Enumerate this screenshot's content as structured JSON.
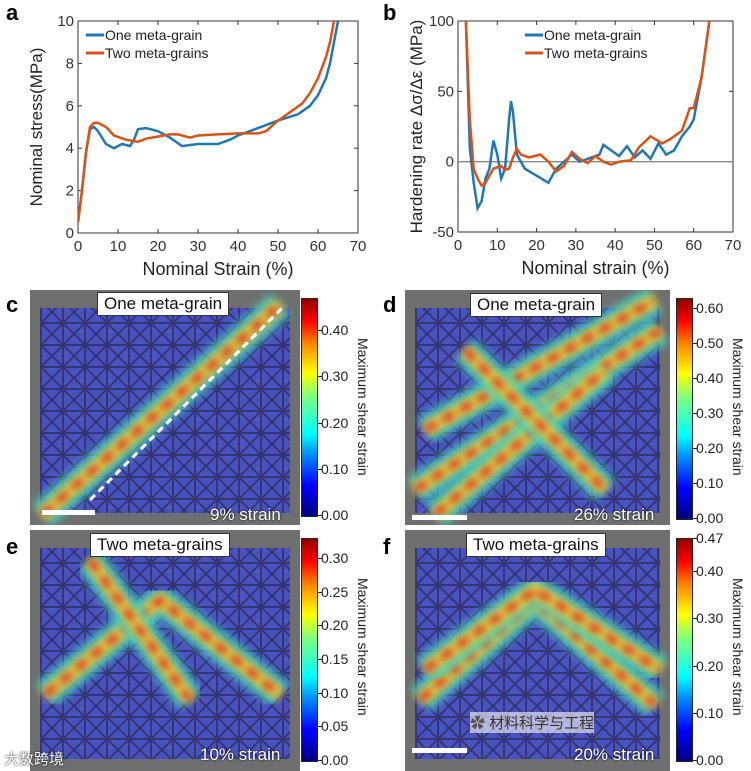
{
  "chart_data": [
    {
      "panel": "a",
      "type": "line",
      "title": "",
      "xlabel": "Nominal Strain (%)",
      "ylabel": "Nominal stress(MPa)",
      "xlim": [
        0,
        70
      ],
      "ylim": [
        0,
        10
      ],
      "xticks": [
        0,
        10,
        20,
        30,
        40,
        50,
        60,
        70
      ],
      "yticks": [
        0,
        2,
        4,
        6,
        8,
        10
      ],
      "legend": "top-left",
      "series": [
        {
          "name": "One meta-grain",
          "color": "#1f77b4",
          "x": [
            0,
            1,
            2,
            3,
            4,
            5,
            6,
            7,
            9,
            11,
            13,
            14,
            15,
            17,
            20,
            23,
            26,
            30,
            35,
            38,
            40,
            45,
            50,
            55,
            58,
            60,
            62,
            63,
            64,
            65
          ],
          "y": [
            0.5,
            2,
            3.8,
            4.9,
            5.0,
            4.8,
            4.5,
            4.2,
            4.0,
            4.2,
            4.1,
            4.4,
            4.9,
            4.95,
            4.8,
            4.5,
            4.1,
            4.2,
            4.2,
            4.4,
            4.6,
            4.95,
            5.3,
            5.6,
            6.0,
            6.5,
            7.3,
            8.0,
            9.0,
            10
          ]
        },
        {
          "name": "Two meta-grains",
          "color": "#d95319",
          "x": [
            0,
            1,
            2,
            3,
            4,
            5,
            7,
            9,
            12,
            15,
            17,
            20,
            23,
            25,
            28,
            30,
            35,
            40,
            45,
            47,
            50,
            53,
            56,
            58,
            60,
            62,
            63,
            64
          ],
          "y": [
            0.5,
            2,
            3.8,
            5.0,
            5.2,
            5.2,
            5.0,
            4.6,
            4.4,
            4.3,
            4.45,
            4.55,
            4.65,
            4.65,
            4.5,
            4.6,
            4.65,
            4.7,
            4.7,
            4.8,
            5.3,
            5.7,
            6.1,
            6.6,
            7.3,
            8.3,
            9.0,
            10
          ]
        }
      ]
    },
    {
      "panel": "b",
      "type": "line",
      "title": "",
      "xlabel": "Nominal strain (%)",
      "ylabel": "Hardening rate  Δσ/Δε (MPa)",
      "xlim": [
        0,
        70
      ],
      "ylim": [
        -50,
        100
      ],
      "xticks": [
        0,
        10,
        20,
        30,
        40,
        50,
        60,
        70
      ],
      "yticks": [
        -50,
        0,
        50,
        100
      ],
      "reference_line_y": 0,
      "legend": "top-center",
      "series": [
        {
          "name": "One meta-grain",
          "color": "#1f77b4",
          "x": [
            2,
            3,
            4,
            5,
            6,
            7,
            8,
            9,
            10,
            11,
            12,
            13,
            13.5,
            14,
            15,
            17,
            20,
            23,
            25,
            27,
            29,
            31,
            34,
            36,
            37,
            39,
            41,
            43,
            45,
            47,
            49,
            51,
            53,
            55,
            57,
            59,
            60,
            62,
            64
          ],
          "y": [
            100,
            10,
            -15,
            -33,
            -28,
            -12,
            -5,
            15,
            5,
            -12,
            -5,
            30,
            43,
            35,
            5,
            -5,
            -10,
            -15,
            -5,
            0,
            5,
            0,
            3,
            5,
            12,
            8,
            4,
            11,
            3,
            8,
            2,
            13,
            5,
            8,
            18,
            25,
            30,
            60,
            100
          ]
        },
        {
          "name": "Two meta-grains",
          "color": "#d95319",
          "x": [
            2,
            3,
            4,
            5,
            6,
            7,
            9,
            11,
            12,
            13,
            14,
            15,
            16,
            18,
            21,
            23,
            25,
            27,
            29,
            31,
            33,
            35,
            37,
            39,
            41,
            44,
            46,
            49,
            52,
            54,
            57,
            59,
            60,
            62,
            64
          ],
          "y": [
            100,
            30,
            -5,
            -12,
            -17,
            -15,
            -5,
            -3,
            -6,
            -5,
            3,
            9,
            5,
            3,
            5,
            0,
            -7,
            -3,
            7,
            2,
            -1,
            4,
            0,
            -2,
            0,
            1,
            10,
            18,
            13,
            16,
            22,
            38,
            38,
            60,
            100
          ]
        }
      ]
    }
  ],
  "panels": {
    "a": "a",
    "b": "b",
    "c": "c",
    "d": "d",
    "e": "e",
    "f": "f"
  },
  "maps": [
    {
      "label": "One meta-grain",
      "strain": "9% strain",
      "colorbar_title": "Maximum shear strain",
      "cmin": 0,
      "cmax": 0.47,
      "ticks": [
        "0.00",
        "0.10",
        "0.20",
        "0.30",
        "0.40"
      ],
      "tick_values": [
        0,
        0.1,
        0.2,
        0.3,
        0.4
      ]
    },
    {
      "label": "One meta-grain",
      "strain": "26% strain",
      "colorbar_title": "Maximum shear strain",
      "cmin": 0,
      "cmax": 0.63,
      "ticks": [
        "0.00",
        "0.10",
        "0.20",
        "0.30",
        "0.40",
        "0.50",
        "0.60"
      ],
      "tick_values": [
        0,
        0.1,
        0.2,
        0.3,
        0.4,
        0.5,
        0.6
      ]
    },
    {
      "label": "Two meta-grains",
      "strain": "10% strain",
      "colorbar_title": "Maximum shear strain",
      "cmin": 0,
      "cmax": 0.33,
      "ticks": [
        "0.00",
        "0.05",
        "0.10",
        "0.15",
        "0.20",
        "0.25",
        "0.30"
      ],
      "tick_values": [
        0,
        0.05,
        0.1,
        0.15,
        0.2,
        0.25,
        0.3
      ]
    },
    {
      "label": "Two meta-grains",
      "strain": "20% strain",
      "colorbar_title": "Maximum shear strain",
      "cmin": 0,
      "cmax": 0.47,
      "ticks": [
        "0.00",
        "0.10",
        "0.20",
        "0.30",
        "0.40",
        "0.47"
      ],
      "tick_values": [
        0,
        0.1,
        0.2,
        0.3,
        0.4,
        0.47
      ]
    }
  ],
  "watermarks": {
    "left": "大数跨境",
    "right": "材料科学与工程"
  }
}
